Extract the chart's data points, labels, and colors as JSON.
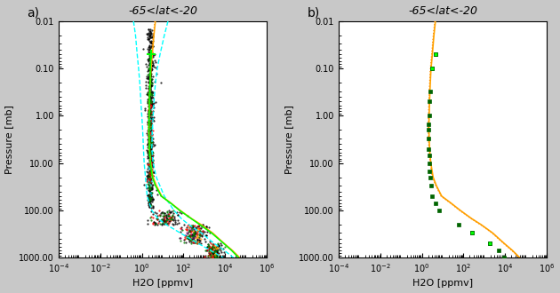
{
  "title": "-65<lat<-20",
  "xlabel": "H2O [ppmv]",
  "ylabel": "Pressure [mb]",
  "fig_bg": "#c8c8c8",
  "panel_bg": "#ffffff",
  "ytick_labels": [
    "0.01",
    "0.10",
    "1.00",
    "10.00",
    "100.00",
    "1000.00"
  ],
  "ytick_vals": [
    0.01,
    0.1,
    1.0,
    10.0,
    100.0,
    1000.0
  ],
  "xtick_vals": [
    0.0001,
    0.01,
    1.0,
    100.0,
    10000.0,
    1000000.0
  ],
  "xlim": [
    0.0001,
    1000000.0
  ],
  "ylim": [
    1000.0,
    0.01
  ],
  "orange_p": [
    0.01,
    0.02,
    0.05,
    0.08,
    0.12,
    0.2,
    0.3,
    0.5,
    0.7,
    1.0,
    1.5,
    2.0,
    3.0,
    5.0,
    7.0,
    10.0,
    20.0,
    30.0,
    50.0,
    70.0,
    100.0,
    150.0,
    200.0,
    300.0,
    500.0,
    700.0,
    1000.0
  ],
  "orange_h2o": [
    4.5,
    3.8,
    3.2,
    2.9,
    2.7,
    2.55,
    2.45,
    2.35,
    2.3,
    2.25,
    2.2,
    2.2,
    2.25,
    2.35,
    2.5,
    2.7,
    3.5,
    5.0,
    9.0,
    25.0,
    70.0,
    250.0,
    700.0,
    2500.0,
    9000.0,
    22000.0,
    50000.0
  ],
  "green_p": [
    0.05,
    0.08,
    0.12,
    0.2,
    0.3,
    0.5,
    0.7,
    1.0,
    1.5,
    2.0,
    3.0,
    5.0,
    7.0,
    10.0,
    20.0,
    30.0,
    50.0,
    70.0,
    100.0,
    200.0,
    300.0,
    500.0,
    700.0,
    1000.0
  ],
  "green_h2o": [
    2.8,
    2.65,
    2.55,
    2.48,
    2.42,
    2.35,
    2.3,
    2.25,
    2.2,
    2.2,
    2.25,
    2.35,
    2.45,
    2.6,
    3.2,
    4.5,
    8.5,
    24.0,
    65.0,
    600.0,
    2200.0,
    8500.0,
    20000.0,
    44000.0
  ],
  "cyan_p": [
    0.01,
    0.02,
    0.05,
    0.1,
    0.2,
    0.5,
    1.0,
    2.0,
    5.0,
    10.0,
    20.0,
    50.0,
    100.0,
    150.0,
    200.0,
    300.0,
    500.0,
    700.0,
    1000.0
  ],
  "cyan_right": [
    18.0,
    12.0,
    7.5,
    5.5,
    4.5,
    3.8,
    3.5,
    3.2,
    3.0,
    3.5,
    5.0,
    12.0,
    35.0,
    80.0,
    180.0,
    700.0,
    3000.0,
    9000.0,
    25000.0
  ],
  "cyan_left": [
    0.4,
    0.5,
    0.6,
    0.7,
    0.8,
    0.9,
    1.0,
    1.1,
    1.2,
    1.3,
    1.5,
    1.8,
    3.0,
    6.0,
    15.0,
    70.0,
    500.0,
    2000.0,
    8000.0
  ],
  "b_mean_p": [
    0.05,
    0.1,
    0.3,
    0.5,
    1.0,
    1.5,
    2.0,
    3.0,
    5.0,
    7.0,
    10.0,
    15.0,
    20.0,
    30.0,
    50.0,
    70.0,
    100.0,
    200.0,
    300.0,
    500.0,
    700.0,
    1000.0
  ],
  "b_mean_h2o": [
    4.5,
    3.2,
    2.5,
    2.3,
    2.2,
    2.15,
    2.1,
    2.1,
    2.15,
    2.2,
    2.3,
    2.4,
    2.5,
    2.7,
    3.2,
    4.5,
    7.0,
    60.0,
    250.0,
    1800.0,
    5000.0,
    9000.0
  ],
  "b_light_p": [
    0.05,
    0.1,
    300.0,
    500.0
  ],
  "b_light_h2o": [
    4.5,
    3.2,
    250.0,
    1800.0
  ]
}
